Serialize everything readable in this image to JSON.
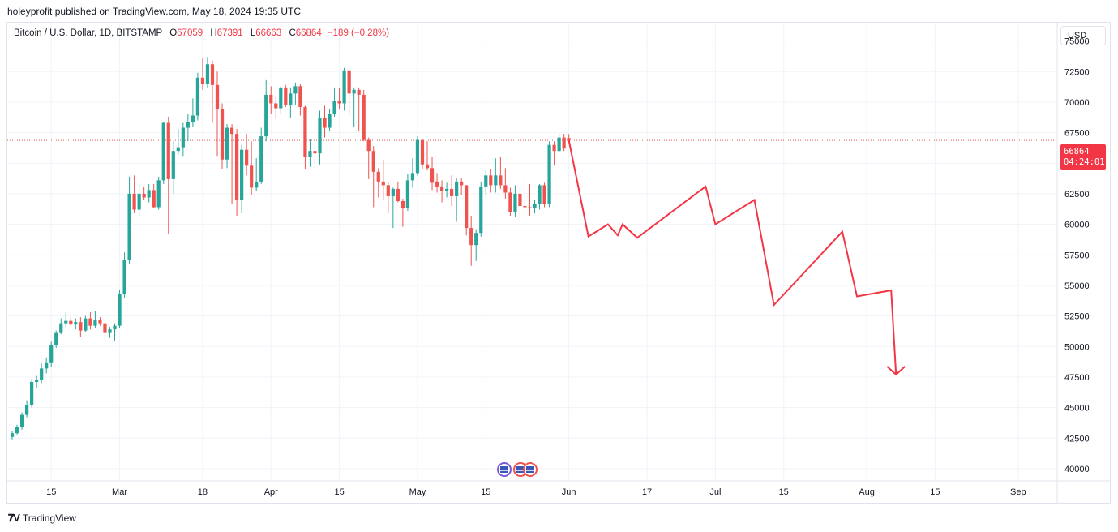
{
  "header": {
    "published_line": "holeyprofit published on TradingView.com, May 18, 2024 19:35 UTC"
  },
  "legend": {
    "symbol": "Bitcoin / U.S. Dollar, 1D, BITSTAMP",
    "open_label": "O",
    "open_value": "67059",
    "high_label": "H",
    "high_value": "67391",
    "low_label": "L",
    "low_value": "66663",
    "close_label": "C",
    "close_value": "66864",
    "change": "−189 (−0.28%)"
  },
  "currency_button": "USD",
  "price_tag": {
    "price": "66864",
    "countdown": "04:24:01"
  },
  "footer": {
    "brand": "TradingView"
  },
  "colors": {
    "up": "#26a69a",
    "down": "#ef5350",
    "drawing": "#f23645",
    "grid": "#f0f3fa",
    "axis_text": "#131722"
  },
  "icons": [
    "tradingview-logo-icon",
    "us-flag-event-icon"
  ],
  "chart_data": {
    "type": "candlestick",
    "title": "Bitcoin / U.S. Dollar, 1D, BITSTAMP",
    "ylim": [
      39000,
      76500
    ],
    "y_ticks": [
      40000,
      42500,
      45000,
      47500,
      50000,
      52500,
      55000,
      57500,
      60000,
      62500,
      65000,
      67500,
      70000,
      72500,
      75000
    ],
    "x_ticks": [
      {
        "day": 15,
        "label": "15"
      },
      {
        "day": 29,
        "label": "Mar"
      },
      {
        "day": 46,
        "label": "18"
      },
      {
        "day": 60,
        "label": "Apr"
      },
      {
        "day": 74,
        "label": "15"
      },
      {
        "day": 90,
        "label": "May"
      },
      {
        "day": 104,
        "label": "15"
      },
      {
        "day": 121,
        "label": "Jun"
      },
      {
        "day": 137,
        "label": "17"
      },
      {
        "day": 151,
        "label": "Jul"
      },
      {
        "day": 165,
        "label": "15"
      },
      {
        "day": 182,
        "label": "Aug"
      },
      {
        "day": 196,
        "label": "15"
      },
      {
        "day": 213,
        "label": "Sep"
      }
    ],
    "x_range_days": [
      6,
      221
    ],
    "first_candle_day": 7,
    "current_price": 66864,
    "candles": [
      [
        42600,
        43100,
        42400,
        42900
      ],
      [
        42900,
        43600,
        42800,
        43400
      ],
      [
        43400,
        44600,
        43200,
        44400
      ],
      [
        44400,
        45600,
        44200,
        45200
      ],
      [
        45200,
        47300,
        45000,
        47100
      ],
      [
        47100,
        47600,
        46600,
        47300
      ],
      [
        47300,
        48600,
        47000,
        48200
      ],
      [
        48200,
        49100,
        47800,
        48700
      ],
      [
        48700,
        50400,
        48300,
        50100
      ],
      [
        50100,
        51300,
        49900,
        51100
      ],
      [
        51100,
        52300,
        51000,
        51900
      ],
      [
        51900,
        52800,
        51600,
        52100
      ],
      [
        52100,
        52400,
        51700,
        51800
      ],
      [
        51800,
        52300,
        51400,
        52000
      ],
      [
        52000,
        52400,
        50800,
        51300
      ],
      [
        51300,
        52500,
        51200,
        52300
      ],
      [
        52300,
        52800,
        51400,
        51700
      ],
      [
        51700,
        52900,
        51500,
        52200
      ],
      [
        52200,
        52400,
        51700,
        51900
      ],
      [
        51900,
        52000,
        50500,
        51100
      ],
      [
        51100,
        51600,
        50700,
        51400
      ],
      [
        51400,
        51900,
        50500,
        51700
      ],
      [
        51700,
        54600,
        51500,
        54300
      ],
      [
        54300,
        57700,
        54000,
        57100
      ],
      [
        57100,
        63900,
        56800,
        62500
      ],
      [
        62500,
        64000,
        60900,
        61200
      ],
      [
        61200,
        63300,
        60600,
        62500
      ],
      [
        62500,
        63100,
        62000,
        62200
      ],
      [
        62200,
        63300,
        61800,
        62800
      ],
      [
        62800,
        63300,
        61300,
        61400
      ],
      [
        61400,
        63900,
        61200,
        63600
      ],
      [
        63600,
        68400,
        63300,
        68300
      ],
      [
        68300,
        68800,
        59200,
        63700
      ],
      [
        63700,
        66800,
        62500,
        66000
      ],
      [
        66000,
        67800,
        65700,
        66300
      ],
      [
        66300,
        68300,
        65600,
        67900
      ],
      [
        67900,
        69000,
        66800,
        68400
      ],
      [
        68400,
        70300,
        68000,
        68900
      ],
      [
        68900,
        72400,
        68500,
        72000
      ],
      [
        72000,
        73600,
        71000,
        71500
      ],
      [
        71500,
        73700,
        71200,
        73100
      ],
      [
        73100,
        73400,
        68300,
        71400
      ],
      [
        71400,
        72500,
        65600,
        69400
      ],
      [
        69400,
        69900,
        64500,
        65300
      ],
      [
        65300,
        68200,
        64600,
        67900
      ],
      [
        67900,
        68200,
        61700,
        67400
      ],
      [
        67400,
        67800,
        60700,
        62000
      ],
      [
        62000,
        66500,
        60900,
        66100
      ],
      [
        66100,
        67400,
        64000,
        64800
      ],
      [
        64800,
        66800,
        62400,
        63000
      ],
      [
        63000,
        65400,
        62700,
        63500
      ],
      [
        63500,
        67900,
        63300,
        67200
      ],
      [
        67200,
        71800,
        66800,
        70600
      ],
      [
        70600,
        71300,
        69000,
        69900
      ],
      [
        69900,
        70500,
        68600,
        69500
      ],
      [
        69500,
        71300,
        69100,
        71200
      ],
      [
        71200,
        71400,
        69600,
        69800
      ],
      [
        69800,
        71200,
        68700,
        70700
      ],
      [
        70700,
        71600,
        69800,
        71300
      ],
      [
        71300,
        71500,
        68900,
        69600
      ],
      [
        69600,
        69700,
        64500,
        65500
      ],
      [
        65500,
        67000,
        64700,
        66000
      ],
      [
        66000,
        66900,
        64600,
        65800
      ],
      [
        65800,
        69300,
        64900,
        68700
      ],
      [
        68700,
        69700,
        67100,
        67900
      ],
      [
        67900,
        69400,
        67600,
        69000
      ],
      [
        69000,
        71200,
        68800,
        70100
      ],
      [
        70100,
        71200,
        69400,
        69900
      ],
      [
        69900,
        72800,
        69300,
        72600
      ],
      [
        72600,
        72600,
        69000,
        70700
      ],
      [
        70700,
        71200,
        68000,
        71000
      ],
      [
        71000,
        71200,
        67600,
        70600
      ],
      [
        70600,
        71000,
        66800,
        66900
      ],
      [
        66900,
        67100,
        63700,
        66000
      ],
      [
        66000,
        66400,
        61400,
        64300
      ],
      [
        64300,
        64600,
        62200,
        63500
      ],
      [
        63500,
        65300,
        62000,
        63200
      ],
      [
        63200,
        63400,
        60900,
        62300
      ],
      [
        62300,
        63000,
        59700,
        62900
      ],
      [
        62900,
        63500,
        61800,
        61900
      ],
      [
        61900,
        62100,
        59800,
        61300
      ],
      [
        61300,
        64100,
        61100,
        63600
      ],
      [
        63600,
        65400,
        63000,
        64200
      ],
      [
        64200,
        67200,
        64000,
        66900
      ],
      [
        66900,
        66900,
        64500,
        64900
      ],
      [
        64900,
        66800,
        64400,
        64600
      ],
      [
        64600,
        65500,
        62800,
        63400
      ],
      [
        63500,
        64200,
        62600,
        63100
      ],
      [
        63100,
        63600,
        61800,
        62700
      ],
      [
        62700,
        63400,
        62200,
        62900
      ],
      [
        62900,
        64000,
        61500,
        62300
      ],
      [
        62300,
        63800,
        60200,
        63500
      ],
      [
        63500,
        63800,
        62400,
        63200
      ],
      [
        63200,
        63200,
        59100,
        59700
      ],
      [
        59700,
        60700,
        56600,
        58300
      ],
      [
        58300,
        59600,
        57000,
        59300
      ],
      [
        59300,
        63500,
        59000,
        63100
      ],
      [
        63100,
        64400,
        62400,
        64000
      ],
      [
        64000,
        64500,
        62600,
        63200
      ],
      [
        63200,
        65400,
        62600,
        64000
      ],
      [
        64000,
        65500,
        62900,
        63200
      ],
      [
        63200,
        64600,
        62100,
        62600
      ],
      [
        62600,
        63000,
        60700,
        61000
      ],
      [
        61000,
        63200,
        60600,
        62500
      ],
      [
        62500,
        63000,
        60300,
        61500
      ],
      [
        61500,
        63700,
        60800,
        61400
      ],
      [
        61400,
        63300,
        60700,
        61300
      ],
      [
        61300,
        62000,
        60900,
        61700
      ],
      [
        61700,
        63300,
        61200,
        63200
      ],
      [
        63200,
        63400,
        61400,
        61700
      ],
      [
        61700,
        66800,
        61400,
        66500
      ],
      [
        66500,
        66800,
        64800,
        66000
      ],
      [
        66000,
        67400,
        65900,
        67100
      ],
      [
        67100,
        67400,
        66000,
        66200
      ],
      [
        67059,
        67391,
        66663,
        66864
      ]
    ],
    "projection_path": [
      {
        "day": 125,
        "price": 59000
      },
      {
        "day": 129,
        "price": 60000
      },
      {
        "day": 131,
        "price": 59100
      },
      {
        "day": 132,
        "price": 60000
      },
      {
        "day": 135,
        "price": 58900
      },
      {
        "day": 149,
        "price": 63100
      },
      {
        "day": 151,
        "price": 60000
      },
      {
        "day": 159,
        "price": 62000
      },
      {
        "day": 163,
        "price": 53400
      },
      {
        "day": 177,
        "price": 59400
      },
      {
        "day": 180,
        "price": 54100
      },
      {
        "day": 187,
        "price": 54600
      },
      {
        "day": 188,
        "price": 47700
      }
    ],
    "arrow_tip": {
      "day": 188,
      "price": 47700
    }
  }
}
